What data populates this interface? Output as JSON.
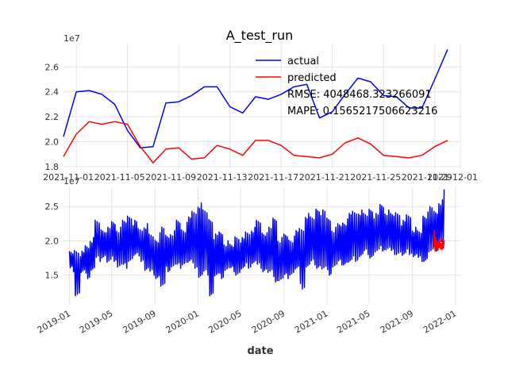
{
  "chart_data": [
    {
      "type": "line",
      "title": "A_test_run",
      "xlabel": "",
      "ylabel": "",
      "y_offset_label": "1e7",
      "ylim": [
        1.78,
        2.78
      ],
      "y_ticks": [
        1.8,
        2.0,
        2.2,
        2.4,
        2.6
      ],
      "y_tick_labels": [
        "1.8",
        "2.0",
        "2.2",
        "2.4",
        "2.6"
      ],
      "x_range": [
        "2021-10-31",
        "2021-12-01"
      ],
      "x_ticks": [
        "2021-11-01",
        "2021-11-05",
        "2021-11-09",
        "2021-11-13",
        "2021-11-17",
        "2021-11-21",
        "2021-11-25",
        "2021-11-29",
        "2021-12-01"
      ],
      "x_tick_labels": [
        "2021-11-01",
        "2021-11-05",
        "2021-11-09",
        "2021-11-13",
        "2021-11-17",
        "2021-11-21",
        "2021-11-25",
        "2021-11-29",
        "2021-12-01"
      ],
      "grid": true,
      "legend_position": "top-right",
      "legend": [
        "actual",
        "predicted"
      ],
      "annotations": [
        "RMSE: 4048468.323266091",
        "MAPE: 0.1565217506623216"
      ],
      "series": [
        {
          "name": "actual",
          "color": "#0000ff",
          "x": [
            "2021-10-31",
            "2021-11-01",
            "2021-11-02",
            "2021-11-03",
            "2021-11-04",
            "2021-11-05",
            "2021-11-06",
            "2021-11-07",
            "2021-11-08",
            "2021-11-09",
            "2021-11-10",
            "2021-11-11",
            "2021-11-12",
            "2021-11-13",
            "2021-11-14",
            "2021-11-15",
            "2021-11-16",
            "2021-11-17",
            "2021-11-18",
            "2021-11-19",
            "2021-11-20",
            "2021-11-21",
            "2021-11-22",
            "2021-11-23",
            "2021-11-24",
            "2021-11-25",
            "2021-11-26",
            "2021-11-27",
            "2021-11-28",
            "2021-11-29",
            "2021-11-30"
          ],
          "values": [
            2.04,
            2.4,
            2.41,
            2.38,
            2.3,
            2.09,
            1.95,
            1.96,
            2.31,
            2.32,
            2.37,
            2.44,
            2.44,
            2.28,
            2.23,
            2.36,
            2.34,
            2.38,
            2.44,
            2.46,
            2.19,
            2.24,
            2.38,
            2.51,
            2.48,
            2.37,
            2.36,
            2.27,
            2.27,
            2.5,
            2.74
          ]
        },
        {
          "name": "predicted",
          "color": "#ff0000",
          "x": [
            "2021-10-31",
            "2021-11-01",
            "2021-11-02",
            "2021-11-03",
            "2021-11-04",
            "2021-11-05",
            "2021-11-06",
            "2021-11-07",
            "2021-11-08",
            "2021-11-09",
            "2021-11-10",
            "2021-11-11",
            "2021-11-12",
            "2021-11-13",
            "2021-11-14",
            "2021-11-15",
            "2021-11-16",
            "2021-11-17",
            "2021-11-18",
            "2021-11-19",
            "2021-11-20",
            "2021-11-21",
            "2021-11-22",
            "2021-11-23",
            "2021-11-24",
            "2021-11-25",
            "2021-11-26",
            "2021-11-27",
            "2021-11-28",
            "2021-11-29",
            "2021-11-30"
          ],
          "values": [
            1.88,
            2.06,
            2.16,
            2.14,
            2.16,
            2.14,
            1.96,
            1.83,
            1.94,
            1.95,
            1.86,
            1.87,
            1.97,
            1.94,
            1.89,
            2.01,
            2.01,
            1.97,
            1.89,
            1.88,
            1.87,
            1.9,
            1.99,
            2.03,
            1.98,
            1.89,
            1.88,
            1.87,
            1.89,
            1.96,
            2.01
          ]
        }
      ]
    },
    {
      "type": "line",
      "title": "",
      "xlabel": "date",
      "ylabel": "",
      "y_offset_label": "1e7",
      "ylim": [
        1.08,
        2.78
      ],
      "y_ticks": [
        1.5,
        2.0,
        2.5
      ],
      "y_tick_labels": [
        "1.5",
        "2.0",
        "2.5"
      ],
      "x_range": [
        "2018-12-15",
        "2022-01-15"
      ],
      "x_ticks": [
        "2019-01-01",
        "2019-05-01",
        "2019-09-01",
        "2020-01-01",
        "2020-05-01",
        "2020-09-01",
        "2021-01-01",
        "2021-05-01",
        "2021-09-01",
        "2022-01-01"
      ],
      "x_tick_labels": [
        "2019-01",
        "2019-05",
        "2019-09",
        "2020-01",
        "2020-05",
        "2020-09",
        "2021-01",
        "2021-05",
        "2021-09",
        "2022-01"
      ],
      "grid": true,
      "series": [
        {
          "name": "actual",
          "color": "#0000ff",
          "x": [
            "2019-01-01",
            "2019-01-15",
            "2019-02-01",
            "2019-02-15",
            "2019-03-01",
            "2019-03-15",
            "2019-04-01",
            "2019-04-15",
            "2019-05-01",
            "2019-05-15",
            "2019-06-01",
            "2019-06-15",
            "2019-07-01",
            "2019-07-15",
            "2019-08-01",
            "2019-08-15",
            "2019-09-01",
            "2019-09-15",
            "2019-10-01",
            "2019-10-15",
            "2019-11-01",
            "2019-11-15",
            "2019-12-01",
            "2019-12-15",
            "2020-01-01",
            "2020-01-15",
            "2020-02-01",
            "2020-02-15",
            "2020-03-01",
            "2020-03-15",
            "2020-04-01",
            "2020-04-15",
            "2020-05-01",
            "2020-05-15",
            "2020-06-01",
            "2020-06-15",
            "2020-07-01",
            "2020-07-15",
            "2020-08-01",
            "2020-08-15",
            "2020-09-01",
            "2020-09-15",
            "2020-10-01",
            "2020-10-15",
            "2020-11-01",
            "2020-11-15",
            "2020-12-01",
            "2020-12-15",
            "2021-01-01",
            "2021-01-15",
            "2021-02-01",
            "2021-02-15",
            "2021-03-01",
            "2021-03-15",
            "2021-04-01",
            "2021-04-15",
            "2021-05-01",
            "2021-05-15",
            "2021-06-01",
            "2021-06-15",
            "2021-07-01",
            "2021-07-15",
            "2021-08-01",
            "2021-08-15",
            "2021-09-01",
            "2021-09-15",
            "2021-10-01",
            "2021-10-15",
            "2021-11-01",
            "2021-11-15",
            "2021-11-30"
          ],
          "lows": [
            1.55,
            1.2,
            1.5,
            1.45,
            1.55,
            1.7,
            1.75,
            1.65,
            1.7,
            1.6,
            1.6,
            1.7,
            1.75,
            1.7,
            1.55,
            1.5,
            1.45,
            1.3,
            1.55,
            1.6,
            1.6,
            1.65,
            1.65,
            1.6,
            1.45,
            1.5,
            1.2,
            1.45,
            1.45,
            1.55,
            1.55,
            1.5,
            1.55,
            1.6,
            1.65,
            1.6,
            1.55,
            1.5,
            1.4,
            1.4,
            1.45,
            1.5,
            1.55,
            1.3,
            1.6,
            1.65,
            1.6,
            1.55,
            1.5,
            1.6,
            1.65,
            1.65,
            1.65,
            1.7,
            1.75,
            1.8,
            1.75,
            1.8,
            1.85,
            1.85,
            1.8,
            1.8,
            1.75,
            1.8,
            1.75,
            1.7,
            1.7,
            1.8,
            1.85,
            1.95,
            2.05
          ],
          "highs": [
            1.85,
            1.9,
            1.85,
            1.95,
            2.05,
            2.3,
            2.2,
            2.2,
            2.3,
            2.2,
            2.3,
            2.4,
            2.3,
            2.2,
            2.25,
            2.1,
            2.05,
            2.2,
            2.1,
            2.15,
            2.3,
            2.2,
            2.35,
            2.45,
            2.55,
            2.45,
            2.35,
            2.1,
            2.15,
            2.0,
            1.95,
            2.1,
            2.05,
            2.15,
            2.2,
            2.3,
            2.15,
            2.2,
            2.35,
            2.05,
            2.1,
            2.05,
            2.15,
            2.2,
            2.4,
            2.35,
            2.5,
            2.45,
            2.35,
            2.2,
            2.25,
            2.3,
            2.4,
            2.45,
            2.45,
            2.4,
            2.5,
            2.4,
            2.55,
            2.45,
            2.4,
            2.45,
            2.3,
            2.4,
            2.2,
            2.15,
            2.4,
            2.5,
            2.45,
            2.6,
            2.75
          ]
        },
        {
          "name": "predicted",
          "color": "#ff0000",
          "x": [
            "2021-10-31",
            "2021-11-02",
            "2021-11-04",
            "2021-11-06",
            "2021-11-08",
            "2021-11-10",
            "2021-11-12",
            "2021-11-14",
            "2021-11-16",
            "2021-11-18",
            "2021-11-20",
            "2021-11-22",
            "2021-11-24",
            "2021-11-26",
            "2021-11-28",
            "2021-11-30"
          ],
          "values": [
            1.9,
            2.15,
            1.85,
            2.05,
            1.88,
            2.0,
            1.86,
            1.98,
            1.9,
            2.02,
            1.88,
            1.96,
            1.87,
            2.03,
            1.89,
            2.01
          ]
        }
      ]
    }
  ]
}
